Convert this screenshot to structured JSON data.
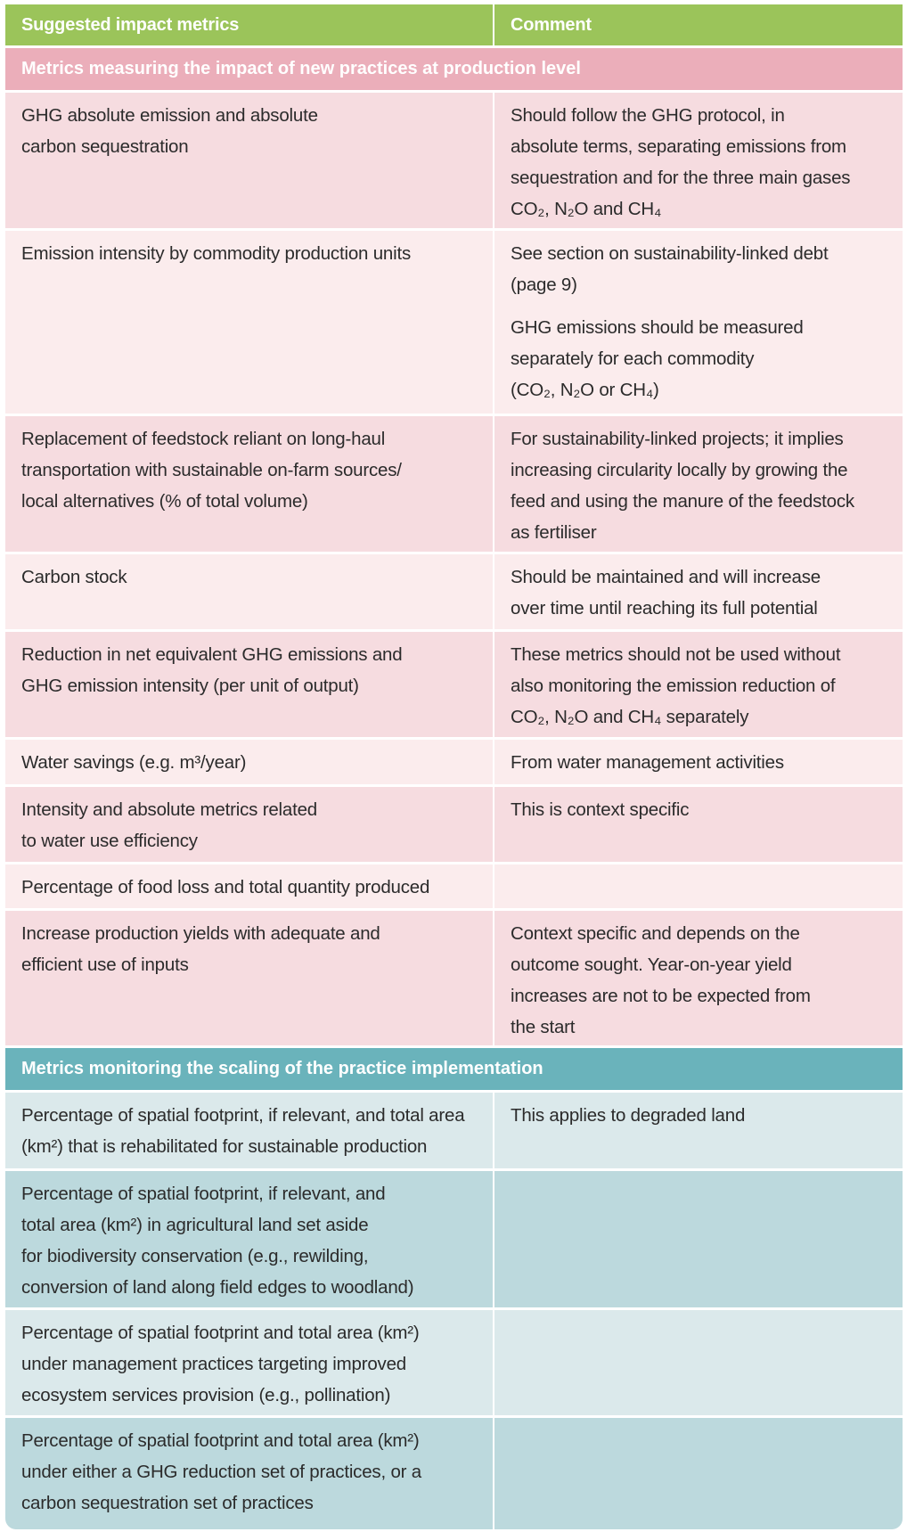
{
  "header": {
    "metric": "Suggested impact metrics",
    "comment": "Comment"
  },
  "colors": {
    "header": "#9bc45a",
    "section_production": "#ebaeba",
    "section_scaling": "#6ab3bb",
    "pink_dark": "#f6dce0",
    "pink_light": "#fbeced",
    "teal_dark": "#bcd9dd",
    "teal_light": "#dbe9eb"
  },
  "sections": [
    {
      "title": "Metrics measuring the impact of new practices at production level",
      "rows": [
        {
          "metric": "GHG absolute emission and absolute\ncarbon sequestration",
          "comment": [
            "Should follow the GHG protocol, in\nabsolute terms, separating emissions from\nsequestration and for the three main gases\nCO₂, N₂O and CH₄"
          ]
        },
        {
          "metric": "Emission intensity by commodity production units",
          "comment": [
            "See section on sustainability-linked debt\n(page 9)",
            "GHG emissions should be measured\nseparately for each commodity\n(CO₂, N₂O or CH₄)"
          ]
        },
        {
          "metric": "Replacement of feedstock reliant on long-haul\ntransportation with sustainable on-farm sources/\nlocal alternatives (% of total volume)",
          "comment": [
            "For sustainability-linked projects; it implies\nincreasing circularity locally by growing the\nfeed and using the manure of the feedstock\nas fertiliser"
          ]
        },
        {
          "metric": "Carbon stock",
          "comment": [
            "Should be maintained and will increase\nover time until reaching its full potential"
          ]
        },
        {
          "metric": "Reduction in net equivalent GHG emissions and\nGHG emission intensity (per unit of output)",
          "comment": [
            "These metrics should not be used without\nalso monitoring the emission reduction of\nCO₂, N₂O and CH₄ separately"
          ]
        },
        {
          "metric": "Water savings (e.g. m³/year)",
          "comment": [
            "From water management activities"
          ]
        },
        {
          "metric": "Intensity and absolute metrics related\nto water use efficiency",
          "comment": [
            "This is context specific"
          ]
        },
        {
          "metric": "Percentage of food loss and total quantity produced",
          "comment": []
        },
        {
          "metric": "Increase production yields with adequate and\nefficient use of inputs",
          "comment": [
            "Context specific and depends on the\noutcome sought. Year-on-year yield\nincreases are not to be expected from\nthe start"
          ]
        }
      ]
    },
    {
      "title": "Metrics monitoring the scaling of the practice implementation",
      "rows": [
        {
          "metric": "Percentage of spatial footprint, if relevant, and total area\n(km²) that is rehabilitated for sustainable production",
          "comment": [
            "This applies to degraded land"
          ]
        },
        {
          "metric": "Percentage of spatial footprint, if relevant, and\ntotal area (km²)  in agricultural land set aside\nfor biodiversity conservation (e.g., rewilding,\nconversion of land along field edges to woodland)",
          "comment": []
        },
        {
          "metric": "Percentage of spatial footprint and total area (km²)\nunder management practices targeting improved\necosystem services provision (e.g., pollination)",
          "comment": []
        },
        {
          "metric": "Percentage of spatial footprint and total area (km²)\nunder either a GHG reduction set of practices, or a\ncarbon sequestration set of practices",
          "comment": []
        }
      ]
    }
  ]
}
